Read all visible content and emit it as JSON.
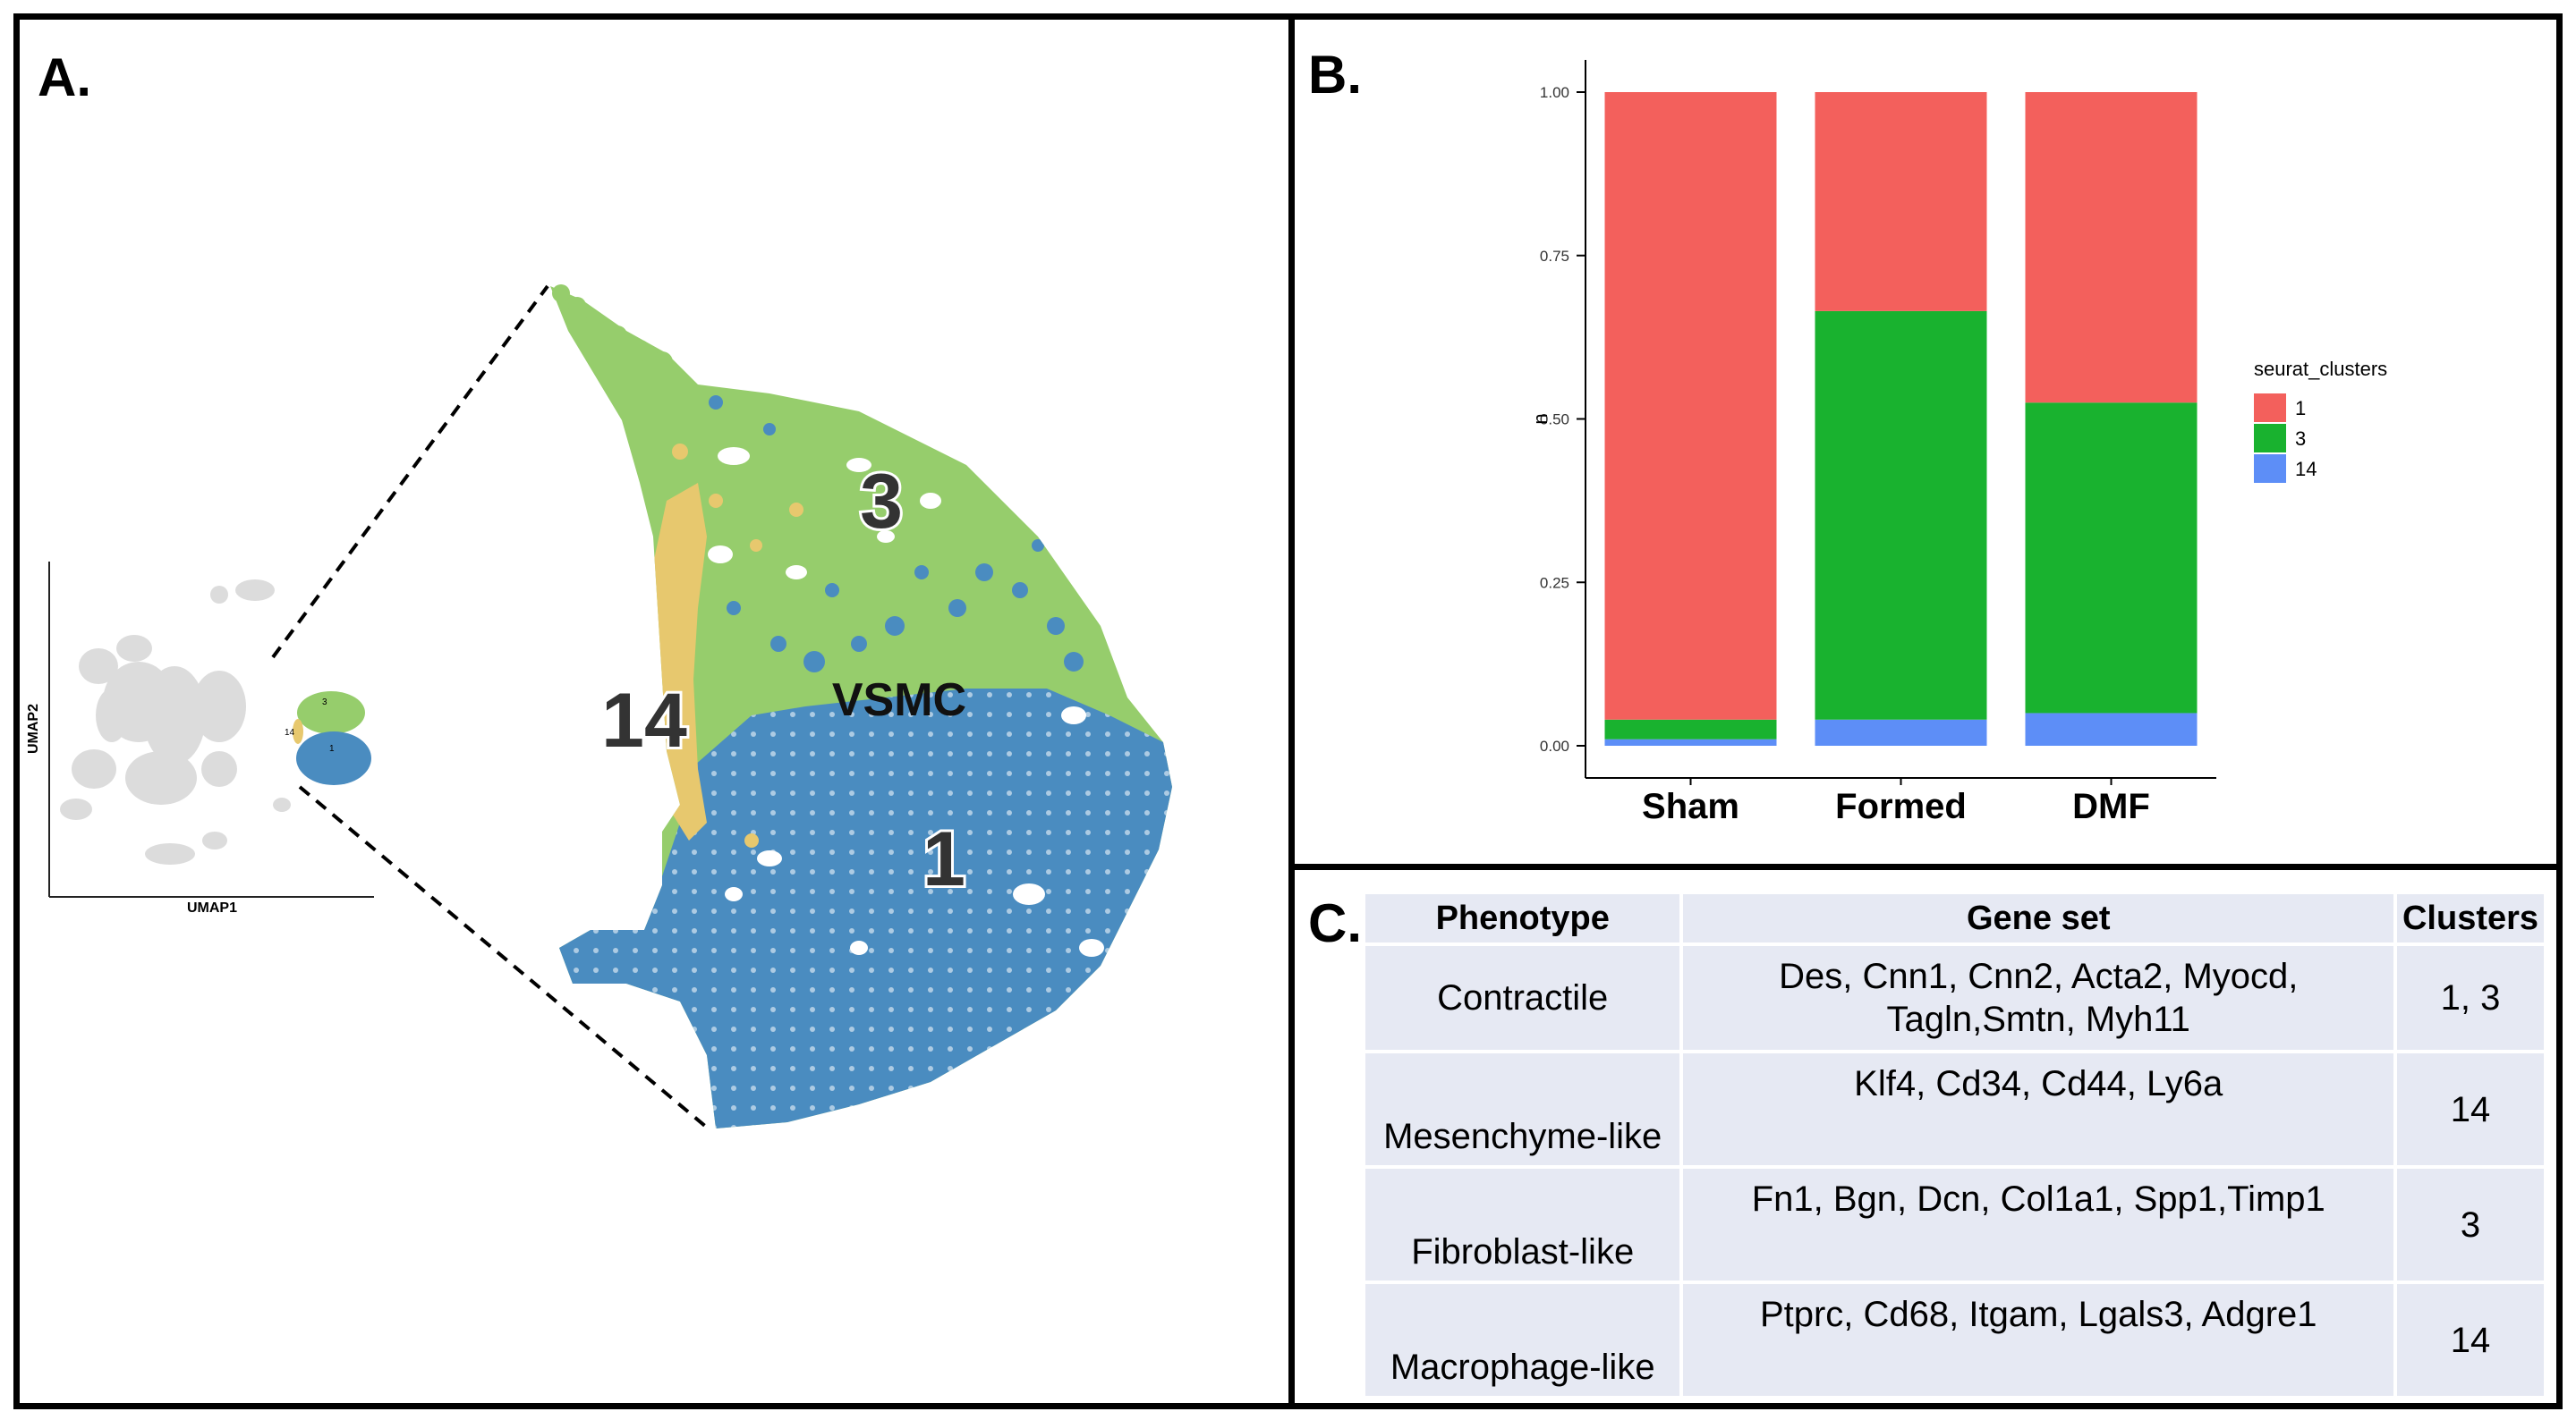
{
  "panels": {
    "a": {
      "letter": "A."
    },
    "b": {
      "letter": "B."
    },
    "c": {
      "letter": "C."
    }
  },
  "umap_overview": {
    "xlabel": "UMAP1",
    "ylabel": "UMAP2",
    "mini_labels": [
      "3",
      "14",
      "1"
    ]
  },
  "umap_zoom": {
    "cluster_labels": {
      "c3": "3",
      "c14": "14",
      "c1": "1"
    },
    "cell_type_label": "VSMC"
  },
  "colors": {
    "cluster1_umap": "#4a8cc0",
    "cluster3_umap": "#96cd6c",
    "cluster14_umap": "#e7c86e",
    "gray_cells": "#dcdcdc",
    "bar_cluster1": "#f3605c",
    "bar_cluster3": "#19b22f",
    "bar_cluster14": "#5d8ef7",
    "table_cell": "#e6e9f3"
  },
  "chart_data": {
    "type": "bar",
    "stacked": true,
    "categories": [
      "Sham",
      "Formed",
      "DMF"
    ],
    "ylabel": "n",
    "xlabel": "",
    "ylim": [
      0,
      1
    ],
    "yticks": [
      0.0,
      0.25,
      0.5,
      0.75,
      1.0
    ],
    "ytick_labels": [
      "0.00",
      "0.25",
      "0.50",
      "0.75",
      "1.00"
    ],
    "legend_title": "seurat_clusters",
    "legend_position": "right",
    "grid": false,
    "series": [
      {
        "name": "14",
        "color": "#5d8ef7",
        "values": [
          0.01,
          0.04,
          0.05
        ]
      },
      {
        "name": "3",
        "color": "#19b22f",
        "values": [
          0.03,
          0.625,
          0.475
        ]
      },
      {
        "name": "1",
        "color": "#f3605c",
        "values": [
          0.96,
          0.335,
          0.475
        ]
      }
    ],
    "legend_order": [
      "1",
      "3",
      "14"
    ]
  },
  "table": {
    "headers": [
      "Phenotype",
      "Gene set",
      "Clusters"
    ],
    "rows": [
      {
        "phenotype": "Contractile",
        "genes_line1": "Des, Cnn1, Cnn2, Acta2, Myocd,",
        "genes_line2": "Tagln,Smtn, Myh11",
        "clusters": "1, 3"
      },
      {
        "phenotype": "Mesenchyme-like",
        "genes_line1": "Klf4, Cd34, Cd44, Ly6a",
        "genes_line2": "",
        "clusters": "14"
      },
      {
        "phenotype": "Fibroblast-like",
        "genes_line1": "Fn1, Bgn, Dcn, Col1a1, Spp1,Timp1",
        "genes_line2": "",
        "clusters": "3"
      },
      {
        "phenotype": "Macrophage-like",
        "genes_line1": "Ptprc, Cd68, Itgam, Lgals3, Adgre1",
        "genes_line2": "",
        "clusters": "14"
      }
    ]
  }
}
